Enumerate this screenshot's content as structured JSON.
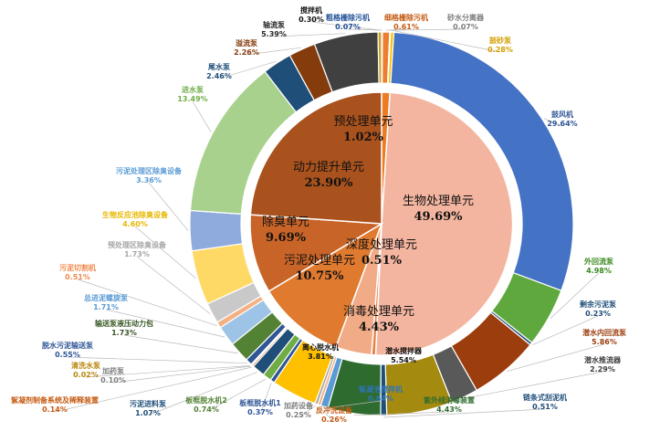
{
  "chart_data": {
    "type": "pie",
    "title": "",
    "inner": [
      {
        "name": "预处理单元",
        "value": "1.02%",
        "color": "#ec7b22"
      },
      {
        "name": "生物处理单元",
        "value": "49.69%",
        "color": "#f4b5a0"
      },
      {
        "name": "深度处理单元",
        "value": "0.51%",
        "color": "#e9834a"
      },
      {
        "name": "消毒处理单元",
        "value": "4.43%",
        "color": "#f1ab86"
      },
      {
        "name": "污泥处理单元",
        "value": "10.75%",
        "color": "#e07a2f"
      },
      {
        "name": "除臭单元",
        "value": "9.69%",
        "color": "#c86428"
      },
      {
        "name": "动力提升单元",
        "value": "23.90%",
        "color": "#a9521d"
      }
    ],
    "outer": [
      {
        "name": "粗格栅除污机",
        "value": "0.07%",
        "color": "#4472c4",
        "text_color": "#1f4e96"
      },
      {
        "name": "细格栅除污机",
        "value": "0.61%",
        "color": "#ed7d31",
        "text_color": "#c55a11"
      },
      {
        "name": "砂水分离器",
        "value": "0.07%",
        "color": "#a5a5a5",
        "text_color": "#7f7f7f"
      },
      {
        "name": "鼓砂泵",
        "value": "0.28%",
        "color": "#ffc000",
        "text_color": "#d4a000"
      },
      {
        "name": "鼓风机",
        "value": "29.64%",
        "color": "#4472c4",
        "text_color": "#2f5597"
      },
      {
        "name": "外回流泵",
        "value": "4.98%",
        "color": "#5fa83e",
        "text_color": "#3a8a1f"
      },
      {
        "name": "剩余污泥泵",
        "value": "0.23%",
        "color": "#1f4e79",
        "text_color": "#1f4e79"
      },
      {
        "name": "潜水内回流泵",
        "value": "5.86%",
        "color": "#9c3d0d",
        "text_color": "#9c3d0d"
      },
      {
        "name": "潜水推流器",
        "value": "2.29%",
        "color": "#595959",
        "text_color": "#404040"
      },
      {
        "name": "潜水搅拌器",
        "value": "5.54%",
        "color": "#a58a10",
        "text_color": "#111111"
      },
      {
        "name": "链条式刮泥机",
        "value": "0.51%",
        "color": "#1f4e79",
        "text_color": "#1f4e79"
      },
      {
        "name": "紫外线消毒装置",
        "value": "4.43%",
        "color": "#2e6b2e",
        "text_color": "#2e6b2e"
      },
      {
        "name": "絮凝池搅拌机",
        "value": "0.64%",
        "color": "#5b9bd5",
        "text_color": "#2e75b6"
      },
      {
        "name": "反冲洗设备",
        "value": "0.26%",
        "color": "#f4b183",
        "text_color": "#c55a11"
      },
      {
        "name": "加药设备",
        "value": "0.25%",
        "color": "#a5a5a5",
        "text_color": "#7f7f7f"
      },
      {
        "name": "离心脱水机",
        "value": "3.81%",
        "color": "#ffc000",
        "text_color": "#111111"
      },
      {
        "name": "板框脱水机1",
        "value": "0.37%",
        "color": "#2f5597",
        "text_color": "#2f5597"
      },
      {
        "name": "板框脱水机2",
        "value": "0.74%",
        "color": "#70ad47",
        "text_color": "#548235"
      },
      {
        "name": "污泥进料泵",
        "value": "1.07%",
        "color": "#1f4e79",
        "text_color": "#1f4e79"
      },
      {
        "name": "絮凝剂制备系统及稀释装置",
        "value": "0.14%",
        "color": "#c55a11",
        "text_color": "#c55a11"
      },
      {
        "name": "加药泵",
        "value": "0.10%",
        "color": "#7f7f7f",
        "text_color": "#7f7f7f"
      },
      {
        "name": "清洗水泵",
        "value": "0.02%",
        "color": "#b8860b",
        "text_color": "#b8860b"
      },
      {
        "name": "脱水污泥输送泵",
        "value": "0.55%",
        "color": "#2f5597",
        "text_color": "#2f5597"
      },
      {
        "name": "输送泵液压动力包",
        "value": "1.73%",
        "color": "#548235",
        "text_color": "#375623"
      },
      {
        "name": "总进泥螺旋泵",
        "value": "1.71%",
        "color": "#9dc3e6",
        "text_color": "#5b9bd5"
      },
      {
        "name": "污泥切割机",
        "value": "0.51%",
        "color": "#f4b183",
        "text_color": "#f08a4b"
      },
      {
        "name": "预处理区除臭设备",
        "value": "1.73%",
        "color": "#c9c9c9",
        "text_color": "#a6a6a6"
      },
      {
        "name": "生物反应池除臭设备",
        "value": "4.60%",
        "color": "#ffd966",
        "text_color": "#e8b800"
      },
      {
        "name": "污泥处理区除臭设备",
        "value": "3.36%",
        "color": "#8faadc",
        "text_color": "#5b9bd5"
      },
      {
        "name": "进水泵",
        "value": "13.49%",
        "color": "#a9d18e",
        "text_color": "#70ad47"
      },
      {
        "name": "尾水泵",
        "value": "2.46%",
        "color": "#1f4e79",
        "text_color": "#1f4e79"
      },
      {
        "name": "溢流泵",
        "value": "2.26%",
        "color": "#843c0c",
        "text_color": "#843c0c"
      },
      {
        "name": "轴流泵",
        "value": "5.39%",
        "color": "#404040",
        "text_color": "#262626"
      },
      {
        "name": "搅拌机",
        "value": "0.30%",
        "color": "#c9a227",
        "text_color": "#111111"
      }
    ]
  }
}
